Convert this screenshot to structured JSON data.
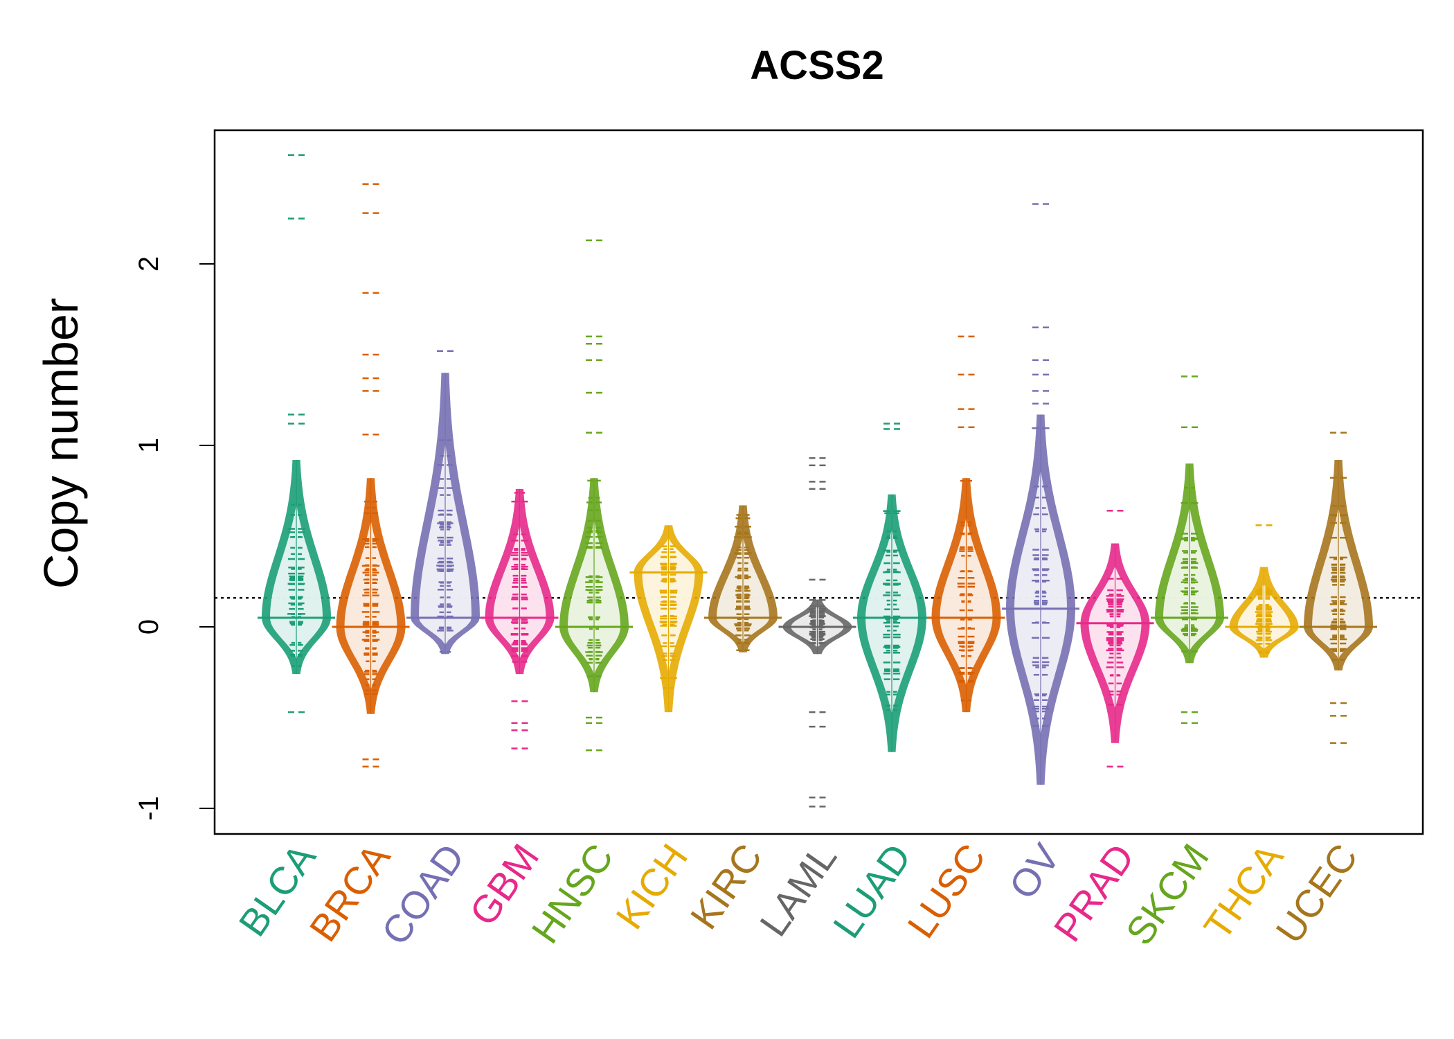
{
  "chart_data": {
    "type": "scatter",
    "title": "ACSS2",
    "xlabel": "",
    "ylabel": "Copy number",
    "ylim": [
      -1.15,
      2.75
    ],
    "yticks": [
      "-1",
      "0",
      "1",
      "2"
    ],
    "reference_line": 0.16,
    "grid": false,
    "categories": [
      "BLCA",
      "BRCA",
      "COAD",
      "GBM",
      "HNSC",
      "KICH",
      "KIRC",
      "LAML",
      "LUAD",
      "LUSC",
      "OV",
      "PRAD",
      "SKCM",
      "THCA",
      "UCEC"
    ],
    "colors": [
      "#1b9e77",
      "#d95f02",
      "#7570b3",
      "#e7298a",
      "#66a61e",
      "#e6ab02",
      "#a6761d",
      "#666666",
      "#1b9e77",
      "#d95f02",
      "#7570b3",
      "#e7298a",
      "#66a61e",
      "#e6ab02",
      "#a6761d"
    ],
    "series": [
      {
        "category": "BLCA",
        "median": 0.05,
        "min": -0.26,
        "max": 0.92,
        "outliers": [
          2.6,
          2.25,
          1.17,
          1.12,
          -0.47
        ]
      },
      {
        "category": "BRCA",
        "median": 0.0,
        "min": -0.48,
        "max": 0.82,
        "outliers": [
          2.44,
          2.28,
          1.84,
          1.5,
          1.37,
          1.3,
          1.06,
          -0.73,
          -0.77
        ]
      },
      {
        "category": "COAD",
        "median": 0.05,
        "min": -0.15,
        "max": 1.4,
        "outliers": [
          1.52
        ]
      },
      {
        "category": "GBM",
        "median": 0.05,
        "min": -0.26,
        "max": 0.76,
        "outliers": [
          -0.41,
          -0.53,
          -0.57,
          -0.67
        ]
      },
      {
        "category": "HNSC",
        "median": 0.0,
        "min": -0.36,
        "max": 0.82,
        "outliers": [
          2.13,
          1.6,
          1.56,
          1.47,
          1.29,
          1.07,
          -0.5,
          -0.53,
          -0.68
        ]
      },
      {
        "category": "KICH",
        "median": 0.3,
        "min": -0.47,
        "max": 0.56,
        "outliers": []
      },
      {
        "category": "KIRC",
        "median": 0.05,
        "min": -0.14,
        "max": 0.67,
        "outliers": []
      },
      {
        "category": "LAML",
        "median": 0.0,
        "min": -0.15,
        "max": 0.15,
        "outliers": [
          0.93,
          0.89,
          0.8,
          0.76,
          0.26,
          -0.47,
          -0.55,
          -0.94,
          -0.99
        ]
      },
      {
        "category": "LUAD",
        "median": 0.05,
        "min": -0.69,
        "max": 0.73,
        "outliers": [
          1.12,
          1.09
        ]
      },
      {
        "category": "LUSC",
        "median": 0.05,
        "min": -0.47,
        "max": 0.82,
        "outliers": [
          1.6,
          1.39,
          1.2,
          1.1
        ]
      },
      {
        "category": "OV",
        "median": 0.1,
        "min": -0.87,
        "max": 1.17,
        "outliers": [
          2.33,
          1.65,
          1.47,
          1.39,
          1.3,
          1.23
        ]
      },
      {
        "category": "PRAD",
        "median": 0.02,
        "min": -0.64,
        "max": 0.46,
        "outliers": [
          0.64,
          -0.77
        ]
      },
      {
        "category": "SKCM",
        "median": 0.05,
        "min": -0.2,
        "max": 0.9,
        "outliers": [
          1.38,
          1.1,
          -0.47,
          -0.53
        ]
      },
      {
        "category": "THCA",
        "median": 0.0,
        "min": -0.17,
        "max": 0.33,
        "outliers": [
          0.56
        ]
      },
      {
        "category": "UCEC",
        "median": 0.0,
        "min": -0.24,
        "max": 0.92,
        "outliers": [
          1.07,
          -0.42,
          -0.49,
          -0.64
        ]
      }
    ]
  }
}
